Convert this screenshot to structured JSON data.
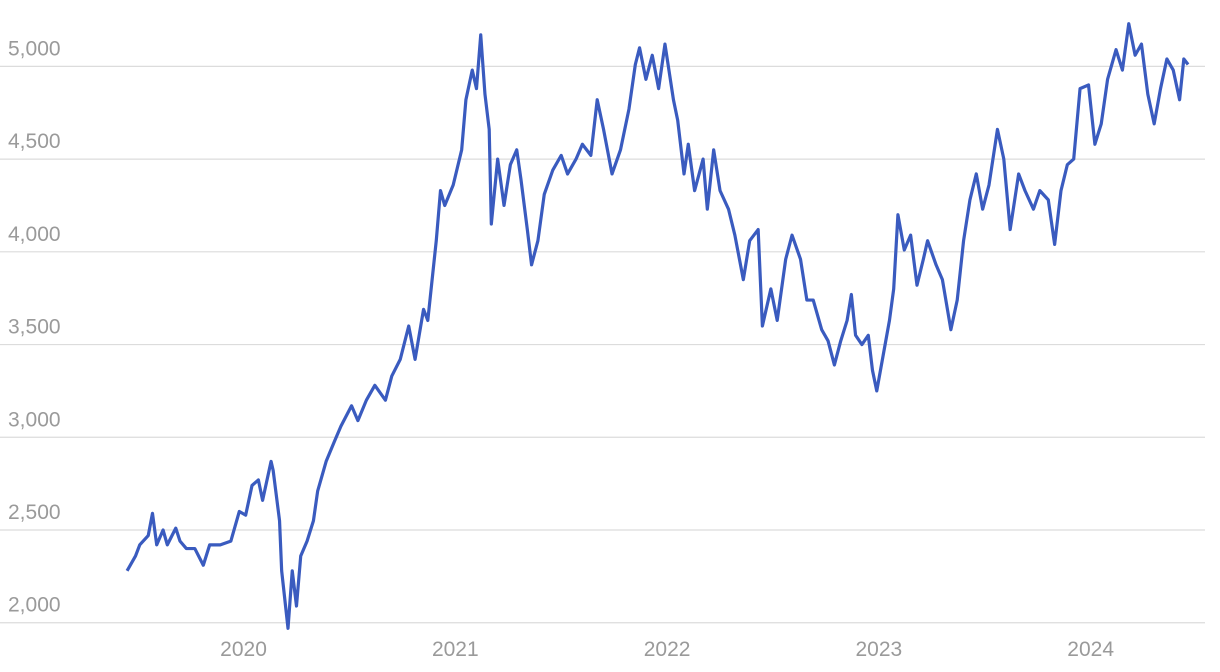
{
  "chart_data": {
    "type": "line",
    "x": [
      2019.45,
      2019.49,
      2019.51,
      2019.55,
      2019.57,
      2019.59,
      2019.62,
      2019.64,
      2019.68,
      2019.7,
      2019.73,
      2019.77,
      2019.81,
      2019.84,
      2019.89,
      2019.94,
      2019.98,
      2020.01,
      2020.04,
      2020.07,
      2020.09,
      2020.13,
      2020.14,
      2020.17,
      2020.18,
      2020.21,
      2020.23,
      2020.25,
      2020.27,
      2020.3,
      2020.33,
      2020.35,
      2020.39,
      2020.43,
      2020.46,
      2020.51,
      2020.54,
      2020.58,
      2020.62,
      2020.67,
      2020.7,
      2020.74,
      2020.78,
      2020.81,
      2020.85,
      2020.87,
      2020.91,
      2020.93,
      2020.95,
      2020.99,
      2021.03,
      2021.05,
      2021.08,
      2021.1,
      2021.12,
      2021.14,
      2021.16,
      2021.17,
      2021.2,
      2021.23,
      2021.26,
      2021.29,
      2021.31,
      2021.34,
      2021.36,
      2021.39,
      2021.42,
      2021.46,
      2021.5,
      2021.53,
      2021.57,
      2021.6,
      2021.64,
      2021.67,
      2021.7,
      2021.74,
      2021.78,
      2021.82,
      2021.85,
      2021.87,
      2021.9,
      2021.93,
      2021.96,
      2021.99,
      2022.03,
      2022.05,
      2022.08,
      2022.1,
      2022.13,
      2022.17,
      2022.19,
      2022.22,
      2022.25,
      2022.29,
      2022.32,
      2022.36,
      2022.39,
      2022.43,
      2022.45,
      2022.49,
      2022.52,
      2022.56,
      2022.59,
      2022.63,
      2022.66,
      2022.69,
      2022.73,
      2022.76,
      2022.79,
      2022.82,
      2022.85,
      2022.87,
      2022.89,
      2022.92,
      2022.95,
      2022.97,
      2022.99,
      2023.02,
      2023.05,
      2023.07,
      2023.09,
      2023.12,
      2023.15,
      2023.18,
      2023.21,
      2023.23,
      2023.27,
      2023.3,
      2023.34,
      2023.37,
      2023.4,
      2023.43,
      2023.46,
      2023.49,
      2023.52,
      2023.56,
      2023.59,
      2023.62,
      2023.66,
      2023.69,
      2023.73,
      2023.76,
      2023.8,
      2023.83,
      2023.86,
      2023.89,
      2023.92,
      2023.95,
      2023.99,
      2024.02,
      2024.05,
      2024.08,
      2024.12,
      2024.15,
      2024.18,
      2024.21,
      2024.24,
      2024.27,
      2024.3,
      2024.33,
      2024.36,
      2024.39,
      2024.42,
      2024.44,
      2024.46
    ],
    "series": [
      {
        "color": "#3a5bbf",
        "values": [
          2280,
          2360,
          2420,
          2470,
          2590,
          2420,
          2500,
          2420,
          2510,
          2440,
          2400,
          2400,
          2310,
          2420,
          2420,
          2440,
          2600,
          2580,
          2740,
          2770,
          2660,
          2870,
          2820,
          2550,
          2280,
          1970,
          2280,
          2090,
          2360,
          2440,
          2550,
          2710,
          2870,
          2980,
          3060,
          3170,
          3090,
          3200,
          3280,
          3200,
          3330,
          3420,
          3600,
          3420,
          3690,
          3630,
          4060,
          4330,
          4250,
          4360,
          4550,
          4820,
          4980,
          4880,
          5170,
          4850,
          4660,
          4150,
          4500,
          4250,
          4470,
          4550,
          4390,
          4120,
          3930,
          4060,
          4310,
          4440,
          4520,
          4420,
          4500,
          4580,
          4520,
          4820,
          4660,
          4420,
          4550,
          4770,
          5010,
          5100,
          4930,
          5060,
          4880,
          5120,
          4820,
          4710,
          4420,
          4580,
          4330,
          4500,
          4230,
          4550,
          4330,
          4230,
          4090,
          3850,
          4060,
          4120,
          3600,
          3800,
          3630,
          3960,
          4090,
          3960,
          3740,
          3740,
          3580,
          3520,
          3390,
          3520,
          3630,
          3770,
          3550,
          3500,
          3550,
          3360,
          3250,
          3440,
          3630,
          3800,
          4200,
          4010,
          4090,
          3820,
          3960,
          4060,
          3930,
          3850,
          3580,
          3740,
          4060,
          4280,
          4420,
          4230,
          4360,
          4660,
          4500,
          4120,
          4420,
          4330,
          4230,
          4330,
          4280,
          4040,
          4330,
          4470,
          4500,
          4880,
          4900,
          4580,
          4690,
          4930,
          5090,
          4980,
          5230,
          5060,
          5120,
          4850,
          4690,
          4880,
          5040,
          4980,
          4820,
          5040,
          5010
        ]
      }
    ],
    "xlim": [
      2018.85,
      2024.54
    ],
    "xticks": [
      2020,
      2021,
      2022,
      2023,
      2024
    ],
    "ylim": [
      1950,
      5250
    ],
    "yticks": [
      {
        "value": 2000,
        "label": "2,000"
      },
      {
        "value": 2500,
        "label": "2,500"
      },
      {
        "value": 3000,
        "label": "3,000"
      },
      {
        "value": 3500,
        "label": "3,500"
      },
      {
        "value": 4000,
        "label": "4,000"
      },
      {
        "value": 4500,
        "label": "4,500"
      },
      {
        "value": 5000,
        "label": "5,000"
      }
    ],
    "grid": true
  }
}
